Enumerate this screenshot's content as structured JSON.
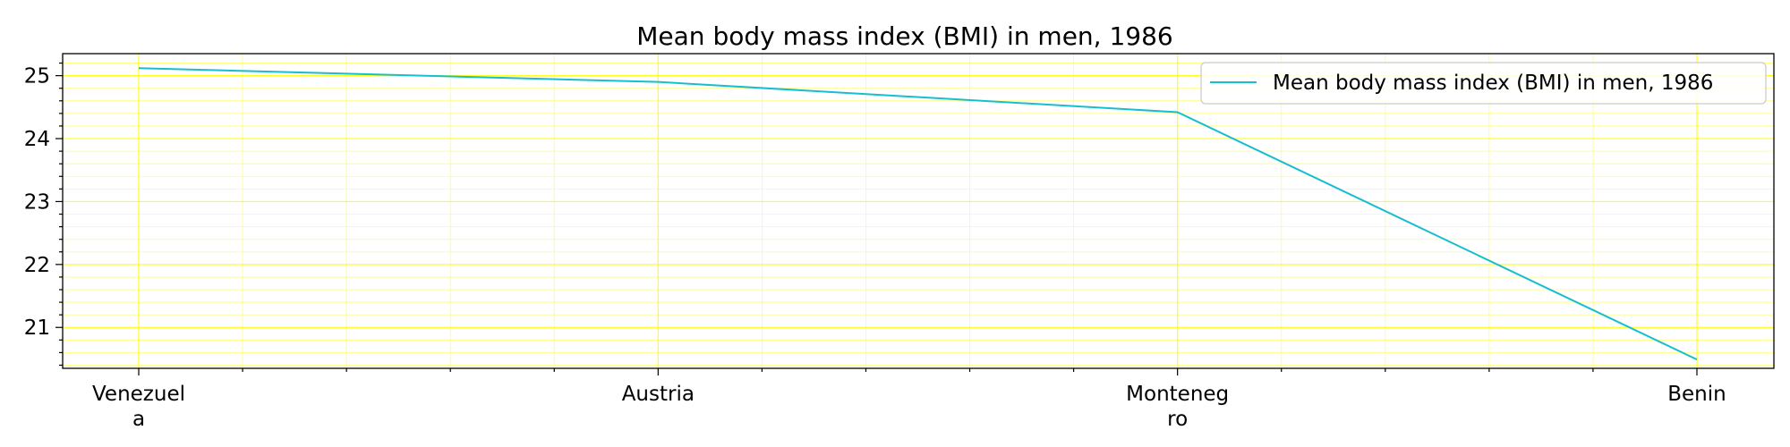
{
  "chart_data": {
    "type": "line",
    "title": "Mean body mass index (BMI) in men, 1986",
    "xlabel": "",
    "ylabel": "",
    "categories": [
      "Venezuela",
      "Austria",
      "Montenegro",
      "Benin"
    ],
    "category_label_lines": [
      [
        "Venezuel",
        "a"
      ],
      [
        "Austria"
      ],
      [
        "Monteneg",
        "ro"
      ],
      [
        "Benin"
      ]
    ],
    "series": [
      {
        "name": "Mean body mass index (BMI) in men, 1986",
        "values": [
          25.12,
          24.9,
          24.42,
          20.49
        ],
        "color": "#17becf"
      }
    ],
    "ylim": [
      20.35,
      25.35
    ],
    "yticks": [
      21,
      22,
      23,
      24,
      25
    ],
    "grid": true,
    "grid_color": "#ffff00",
    "legend_position": "top-right"
  }
}
